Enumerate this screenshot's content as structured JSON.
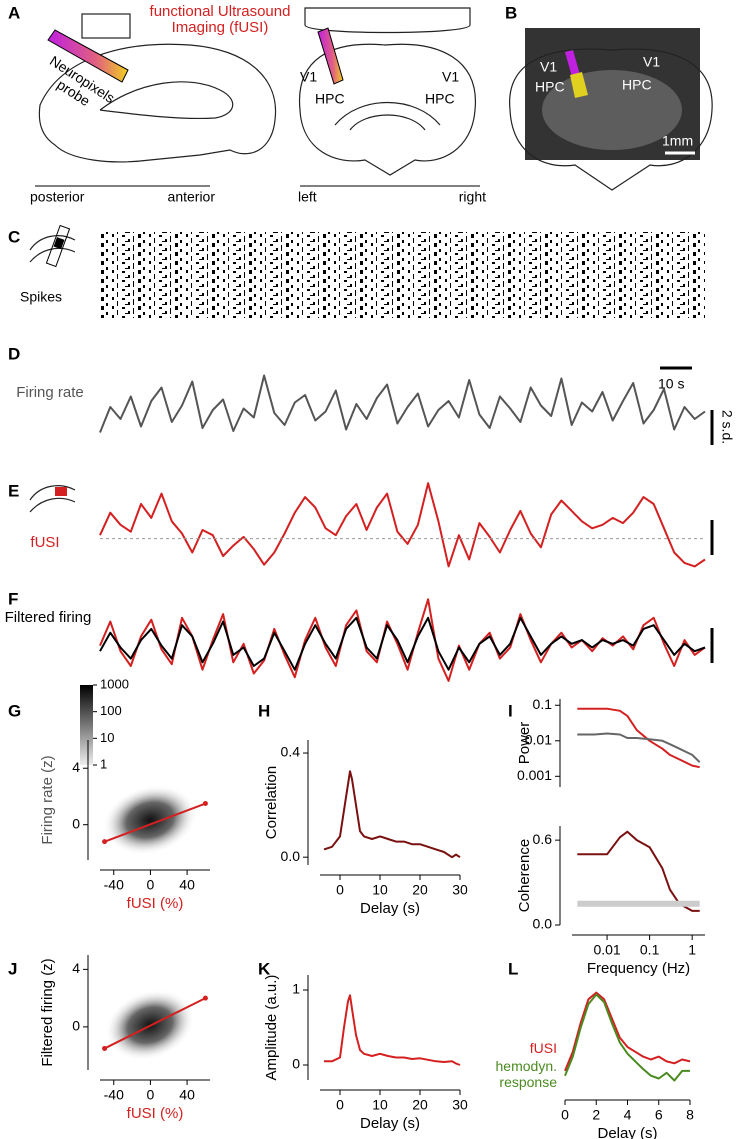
{
  "panel_labels": [
    "A",
    "B",
    "C",
    "D",
    "E",
    "F",
    "G",
    "H",
    "I",
    "J",
    "K",
    "L"
  ],
  "texts": {
    "fusi_title": "functional Ultrasound Imaging (fUSI)",
    "probe": "Neuropixels probe",
    "posterior": "posterior",
    "anterior": "anterior",
    "left": "left",
    "right": "right",
    "a_v1_left": "V1",
    "a_hpc_left": "HPC",
    "a_v1_right": "V1",
    "a_hpc_right": "HPC",
    "b_v1_left": "V1",
    "b_hpc_left": "HPC",
    "b_v1_right": "V1",
    "b_hpc_right": "HPC",
    "scale_mm": "1mm",
    "spikes": "Spikes",
    "scale_time": "10 s",
    "scale_sd": "2 s.d."
  },
  "chart_data": [
    {
      "type": "line",
      "title": "Firing rate",
      "ylim": [
        -2.5,
        3.5
      ],
      "series": [
        {
          "color": "#555555",
          "values": [
            -1.2,
            0.5,
            -0.3,
            1.2,
            -0.8,
            0.9,
            1.8,
            -0.5,
            0.6,
            2.2,
            -0.9,
            0.3,
            1.0,
            -1.1,
            0.4,
            -0.2,
            2.6,
            0.1,
            -0.7,
            0.8,
            1.3,
            -0.4,
            0.2,
            1.6,
            -1.0,
            0.7,
            -0.3,
            1.1,
            2.0,
            -0.6,
            0.5,
            1.4,
            -0.8,
            0.3,
            0.9,
            -0.2,
            2.3,
            0.0,
            -0.9,
            1.2,
            0.4,
            -0.5,
            1.8,
            0.6,
            -0.1,
            2.4,
            -0.7,
            0.8,
            0.2,
            1.5,
            -0.4,
            0.9,
            2.1,
            -0.6,
            0.3,
            1.7,
            -1.0,
            0.5,
            -0.3,
            0.2
          ]
        }
      ]
    },
    {
      "type": "line",
      "title": "fUSI",
      "ylim": [
        -2.5,
        3.5
      ],
      "series": [
        {
          "color": "#d42020",
          "values": [
            0.2,
            1.5,
            0.8,
            0.4,
            2.0,
            1.2,
            2.6,
            1.0,
            0.3,
            -0.8,
            0.5,
            0.2,
            -1.0,
            -0.4,
            0.1,
            -0.6,
            -1.5,
            -0.8,
            0.3,
            1.5,
            2.4,
            1.8,
            0.6,
            0.2,
            1.3,
            2.0,
            0.5,
            1.8,
            2.6,
            0.4,
            -0.3,
            0.8,
            3.2,
            1.0,
            -1.6,
            0.2,
            -1.2,
            0.9,
            0.1,
            -0.8,
            0.5,
            1.6,
            0.3,
            -0.5,
            1.4,
            2.2,
            1.6,
            1.0,
            0.6,
            0.8,
            1.2,
            0.9,
            1.5,
            2.4,
            2.0,
            0.6,
            -0.8,
            -1.4,
            -1.6,
            -1.2
          ]
        }
      ]
    },
    {
      "type": "line",
      "title": "Filtered firing",
      "ylim": [
        -2,
        3.5
      ],
      "series": [
        {
          "color": "#d42020",
          "values": [
            0.5,
            1.8,
            0.2,
            -0.6,
            1.0,
            1.9,
            0.3,
            -0.5,
            2.0,
            1.0,
            -0.8,
            0.8,
            2.2,
            -0.4,
            0.6,
            -1.0,
            -0.3,
            1.4,
            0.0,
            -1.2,
            0.8,
            2.0,
            0.4,
            -0.6,
            1.6,
            2.4,
            0.2,
            -0.4,
            1.8,
            0.6,
            -0.8,
            1.2,
            3.0,
            -0.2,
            -1.4,
            0.5,
            -0.8,
            0.6,
            1.2,
            -0.2,
            0.4,
            2.2,
            0.8,
            -0.4,
            0.6,
            1.2,
            0.4,
            0.8,
            0.2,
            0.9,
            0.5,
            1.0,
            0.3,
            1.6,
            2.0,
            0.6,
            -0.6,
            0.8,
            0.0,
            0.4
          ]
        },
        {
          "color": "#000000",
          "values": [
            0.2,
            1.2,
            0.4,
            -0.2,
            0.8,
            1.4,
            0.5,
            -0.2,
            1.6,
            1.0,
            -0.4,
            0.6,
            1.8,
            0.0,
            0.4,
            -0.6,
            -0.2,
            1.2,
            0.2,
            -0.8,
            0.6,
            1.6,
            0.6,
            -0.2,
            1.4,
            2.0,
            0.4,
            -0.2,
            1.6,
            0.8,
            -0.4,
            1.0,
            2.0,
            0.2,
            -0.8,
            0.4,
            -0.4,
            0.6,
            1.0,
            0.0,
            0.6,
            2.0,
            1.0,
            0.0,
            0.6,
            1.0,
            0.6,
            0.8,
            0.4,
            0.8,
            0.6,
            0.8,
            0.5,
            1.4,
            1.6,
            0.8,
            0.0,
            0.6,
            0.2,
            0.4
          ]
        }
      ]
    },
    {
      "type": "heatmap",
      "x_label": "fUSI (%)",
      "y_label": "Firing rate (z)",
      "xlim": [
        -55,
        65
      ],
      "ylim": [
        -2.5,
        6
      ],
      "xticks": [
        -40,
        0,
        40
      ],
      "yticks": [
        0,
        4
      ],
      "fit": {
        "x": [
          -50,
          60
        ],
        "y": [
          -1.2,
          1.5
        ],
        "color": "#d42020"
      },
      "colorbar": {
        "ticks": [
          1,
          10,
          100,
          1000
        ],
        "lim": [
          1,
          1000
        ],
        "log": true
      }
    },
    {
      "type": "line",
      "x_label": "Delay (s)",
      "y_label": "Correlation",
      "xlim": [
        -5,
        30
      ],
      "ylim": [
        -0.03,
        0.45
      ],
      "xticks": [
        0,
        10,
        20,
        30
      ],
      "yticks": [
        {
          "value": 0,
          "label": "0.0"
        },
        0.4
      ],
      "x": [
        -4,
        -2,
        0,
        1,
        2,
        2.5,
        3,
        4,
        5,
        6,
        8,
        10,
        12,
        14,
        16,
        18,
        20,
        22,
        24,
        26,
        28,
        29,
        30
      ],
      "series": [
        {
          "color": "#7a1010",
          "values": [
            0.03,
            0.04,
            0.08,
            0.18,
            0.28,
            0.33,
            0.3,
            0.2,
            0.1,
            0.08,
            0.07,
            0.08,
            0.07,
            0.06,
            0.06,
            0.05,
            0.05,
            0.04,
            0.03,
            0.02,
            0.0,
            0.01,
            0.0
          ]
        }
      ]
    },
    {
      "type": "line",
      "y_label": "Power",
      "xlog": true,
      "ylog": true,
      "xlim": [
        0.0015,
        2
      ],
      "ylim": [
        0.0005,
        0.15
      ],
      "yticks": [
        0.1,
        0.01,
        0.001
      ],
      "x": [
        0.002,
        0.005,
        0.01,
        0.02,
        0.03,
        0.05,
        0.1,
        0.2,
        0.3,
        0.5,
        1,
        1.5
      ],
      "series": [
        {
          "color": "#d42020",
          "values": [
            0.08,
            0.08,
            0.08,
            0.07,
            0.05,
            0.02,
            0.01,
            0.006,
            0.004,
            0.003,
            0.002,
            0.0018
          ]
        },
        {
          "color": "#666666",
          "values": [
            0.015,
            0.015,
            0.016,
            0.015,
            0.012,
            0.012,
            0.011,
            0.01,
            0.008,
            0.006,
            0.004,
            0.0025
          ]
        }
      ]
    },
    {
      "type": "line",
      "x_label": "Frequency (Hz)",
      "y_label": "Coherence",
      "xlog": true,
      "xlim": [
        0.0015,
        2
      ],
      "ylim": [
        0,
        0.7
      ],
      "xticks": [
        0.01,
        0.1,
        1
      ],
      "yticks": [
        0.6,
        {
          "value": 0,
          "label": "0.0"
        }
      ],
      "x": [
        0.002,
        0.005,
        0.01,
        0.02,
        0.03,
        0.05,
        0.1,
        0.2,
        0.3,
        0.5,
        1,
        1.5
      ],
      "series": [
        {
          "color": "#7a1010",
          "values": [
            0.5,
            0.5,
            0.5,
            0.62,
            0.66,
            0.6,
            0.55,
            0.4,
            0.25,
            0.15,
            0.1,
            0.1
          ]
        },
        {
          "color": "#cccccc",
          "values": [
            0.15,
            0.15,
            0.15,
            0.15,
            0.15,
            0.15,
            0.15,
            0.15,
            0.15,
            0.15,
            0.15,
            0.15
          ]
        }
      ]
    },
    {
      "type": "heatmap",
      "x_label": "fUSI (%)",
      "y_label": "Filtered firing (z)",
      "xlim": [
        -55,
        65
      ],
      "ylim": [
        -3,
        5
      ],
      "xticks": [
        -40,
        0,
        40
      ],
      "yticks": [
        0,
        4
      ],
      "fit": {
        "x": [
          -50,
          60
        ],
        "y": [
          -1.5,
          2.0
        ],
        "color": "#d42020"
      }
    },
    {
      "type": "line",
      "x_label": "Delay (s)",
      "y_label": "Amplitude (a.u.)",
      "xlim": [
        -5,
        30
      ],
      "ylim": [
        -0.2,
        1.2
      ],
      "xticks": [
        0,
        10,
        20,
        30
      ],
      "yticks": [
        0,
        1
      ],
      "x": [
        -4,
        -2,
        0,
        1,
        2,
        2.5,
        3,
        4,
        5,
        6,
        8,
        10,
        12,
        14,
        16,
        18,
        20,
        22,
        24,
        26,
        28,
        29,
        30
      ],
      "series": [
        {
          "color": "#d42020",
          "values": [
            0.05,
            0.05,
            0.1,
            0.5,
            0.85,
            0.93,
            0.75,
            0.4,
            0.2,
            0.15,
            0.12,
            0.15,
            0.12,
            0.1,
            0.1,
            0.08,
            0.09,
            0.07,
            0.05,
            0.04,
            0.05,
            0.02,
            0.0
          ]
        }
      ]
    },
    {
      "type": "line",
      "x_label": "Delay (s)",
      "xlim": [
        0,
        8
      ],
      "ylim": [
        -0.1,
        1
      ],
      "xticks": [
        0,
        2,
        4,
        6,
        8
      ],
      "x": [
        0,
        0.5,
        1,
        1.5,
        2,
        2.5,
        3,
        3.5,
        4,
        4.5,
        5,
        5.5,
        6,
        6.5,
        7,
        7.5,
        8
      ],
      "series": [
        {
          "name": "fUSI",
          "color": "#d42020",
          "values": [
            0.1,
            0.3,
            0.6,
            0.85,
            0.92,
            0.85,
            0.65,
            0.45,
            0.35,
            0.3,
            0.25,
            0.22,
            0.25,
            0.2,
            0.18,
            0.22,
            0.2
          ]
        },
        {
          "name": "hemodyn. response",
          "color": "#4a8a20",
          "values": [
            0.05,
            0.25,
            0.55,
            0.8,
            0.9,
            0.82,
            0.6,
            0.4,
            0.28,
            0.2,
            0.12,
            0.05,
            0.02,
            0.08,
            0.0,
            0.1,
            0.1
          ]
        }
      ]
    }
  ]
}
